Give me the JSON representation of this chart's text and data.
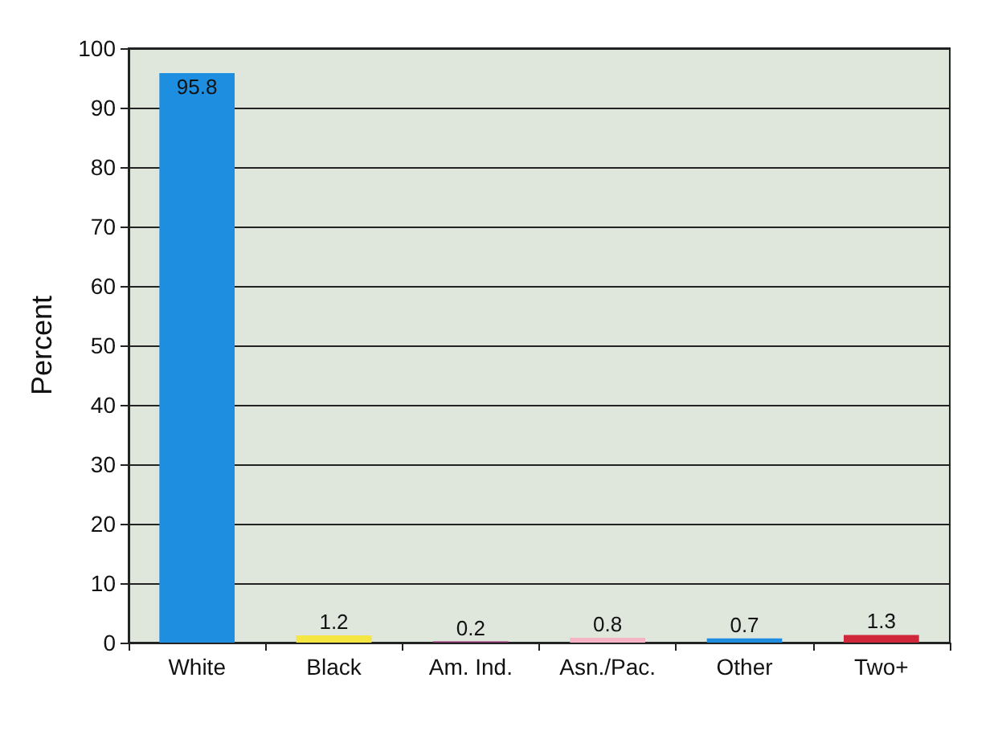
{
  "chart_data": {
    "type": "bar",
    "ylabel": "Percent",
    "categories": [
      "White",
      "Black",
      "Am. Ind.",
      "Asn./Pac.",
      "Other",
      "Two+"
    ],
    "values": [
      95.8,
      1.2,
      0.2,
      0.8,
      0.7,
      1.3
    ],
    "colors": [
      "#1e8fe0",
      "#f5e642",
      "#8b2a6b",
      "#f6b3c6",
      "#1e8fe0",
      "#d0283a"
    ],
    "ylim": [
      0,
      100
    ],
    "yticks": [
      0,
      10,
      20,
      30,
      40,
      50,
      60,
      70,
      80,
      90,
      100
    ],
    "grid": "y",
    "data_labels": true
  }
}
